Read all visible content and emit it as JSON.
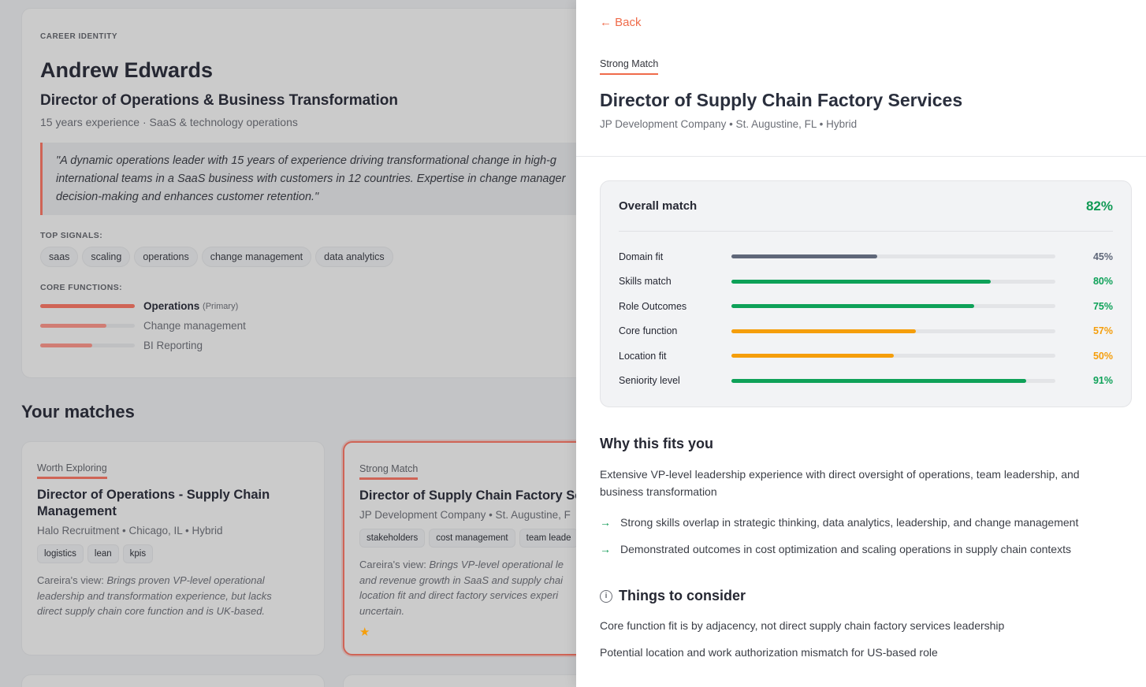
{
  "identity": {
    "eyebrow": "CAREER IDENTITY",
    "name": "Andrew Edwards",
    "role": "Director of Operations & Business Transformation",
    "subtitle": "15 years experience · SaaS & technology operations",
    "quote": [
      "\"A dynamic operations leader with 15 years of experience driving transformational change in high-g",
      "international teams in a SaaS business with customers in 12 countries. Expertise in change manager",
      "decision-making and enhances customer retention.\""
    ],
    "signals_label": "TOP SIGNALS:",
    "signals": [
      "saas",
      "scaling",
      "operations",
      "change management",
      "data analytics"
    ],
    "functions_label": "CORE FUNCTIONS:",
    "functions": [
      {
        "name": "Operations",
        "note": "(Primary)",
        "level": 100
      },
      {
        "name": "Change management",
        "note": "",
        "level": 70
      },
      {
        "name": "BI Reporting",
        "note": "",
        "level": 55
      }
    ]
  },
  "matches": {
    "heading": "Your matches",
    "cards": [
      {
        "tag": "Worth Exploring",
        "title": [
          "Director of Operations - Supply Chain",
          "Management"
        ],
        "meta": "Halo Recruitment • Chicago, IL • Hybrid",
        "chips": [
          "logistics",
          "lean",
          "kpis"
        ],
        "view_label": "Careira's view: ",
        "view": [
          "Brings proven VP-level operational",
          "leadership and transformation experience, but lacks",
          "direct supply chain core function and is UK-based."
        ]
      },
      {
        "tag": "Strong Match",
        "title": [
          "Director of Supply Chain Factory Ser"
        ],
        "meta": "JP Development Company • St. Augustine, F",
        "chips": [
          "stakeholders",
          "cost management",
          "team leade"
        ],
        "view_label": "Careira's view: ",
        "view": [
          "Brings VP-level operational le",
          "and revenue growth in SaaS and supply chai",
          "location fit and direct factory services experi",
          "uncertain."
        ],
        "starred": true
      }
    ]
  },
  "detail": {
    "back": "← Back",
    "tag": "Strong Match",
    "title": "Director of Supply Chain Factory Services",
    "meta": "JP Development Company • St. Augustine, FL • Hybrid",
    "overall_label": "Overall match",
    "overall": "82%",
    "scores": [
      {
        "name": "Domain fit",
        "value": 45,
        "label": "45%",
        "color": "#5f6779"
      },
      {
        "name": "Skills match",
        "value": 80,
        "label": "80%",
        "color": "#0ea158"
      },
      {
        "name": "Role Outcomes",
        "value": 75,
        "label": "75%",
        "color": "#0ea158"
      },
      {
        "name": "Core function",
        "value": 57,
        "label": "57%",
        "color": "#f59e0b"
      },
      {
        "name": "Location fit",
        "value": 50,
        "label": "50%",
        "color": "#f59e0b"
      },
      {
        "name": "Seniority level",
        "value": 91,
        "label": "91%",
        "color": "#0ea158"
      }
    ],
    "why_heading": "Why this fits you",
    "why_text": "Extensive VP-level leadership experience with direct oversight of operations, team leadership, and business transformation",
    "why_points": [
      "Strong skills overlap in strategic thinking, data analytics, leadership, and change management",
      "Demonstrated outcomes in cost optimization and scaling operations in supply chain contexts"
    ],
    "consider_heading": "Things to consider",
    "consider": [
      "Core function fit is by adjacency, not direct supply chain factory services leadership",
      "Potential location and work authorization mismatch for US-based role"
    ]
  }
}
